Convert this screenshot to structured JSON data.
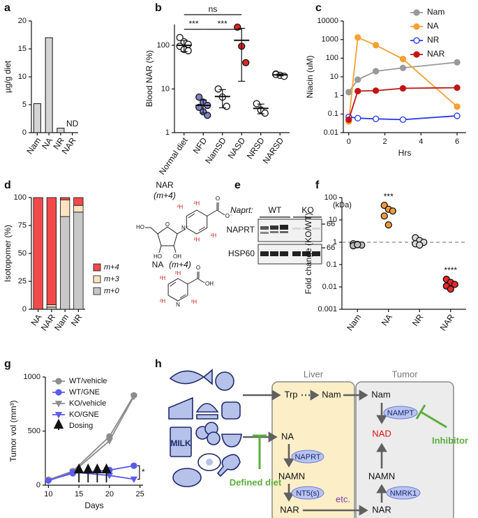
{
  "panel_labels": [
    "a",
    "b",
    "c",
    "d",
    "e",
    "f",
    "g",
    "h"
  ],
  "chart_data": [
    {
      "type": "bar",
      "ylabel": "µg/g diet",
      "categories": [
        "Nam",
        "NA",
        "NR",
        "NAR"
      ],
      "values": [
        5.2,
        17,
        0.8,
        null
      ],
      "value_labels": [
        null,
        null,
        null,
        "ND"
      ],
      "color": "#d4d4d4",
      "ylim": [
        0,
        20
      ],
      "yticks": [
        0,
        5,
        10,
        15,
        20
      ]
    },
    {
      "type": "dot",
      "ylabel": "Blood NAR (%)",
      "log": true,
      "ylim": [
        1,
        300
      ],
      "yticks": [
        1,
        10,
        100
      ],
      "groups": [
        {
          "name": "Normal diet",
          "color": "#ffffff",
          "values": [
            150,
            120,
            105,
            95,
            80,
            75
          ],
          "mean": 100,
          "sd": 28
        },
        {
          "name": "NFD",
          "color": "#7f7fcc",
          "values": [
            6.5,
            5,
            4.2,
            3.8,
            3,
            2.5
          ],
          "mean": 4.2,
          "sd": 1.4
        },
        {
          "name": "NamSD",
          "color": "#ffffff",
          "values": [
            10,
            6.5,
            4
          ],
          "mean": 6.7,
          "sd": 3
        },
        {
          "name": "NASD",
          "color": "#e02424",
          "values": [
            260,
            95,
            40
          ],
          "mean": 130,
          "sd": 115
        },
        {
          "name": "NRSD",
          "color": "#ffffff",
          "values": [
            4.6,
            3.3,
            2.8
          ],
          "mean": 3.6,
          "sd": 0.9
        },
        {
          "name": "NARSD",
          "color": "#ffffff",
          "values": [
            22,
            20.5,
            19.5,
            21.5
          ],
          "mean": 21,
          "sd": 1.1
        }
      ],
      "comparisons": [
        {
          "text": "ns",
          "from": "Normal diet",
          "to": "NASD"
        },
        {
          "text": "***",
          "from": "Normal diet",
          "to": "NFD"
        },
        {
          "text": "***",
          "from": "NFD",
          "to": "NASD"
        }
      ]
    },
    {
      "type": "line",
      "ylabel": "Niacin (uM)",
      "xlabel": "Hrs",
      "log": true,
      "x": [
        0,
        0.5,
        1.5,
        3,
        6
      ],
      "xlim": [
        -0.3,
        6.5
      ],
      "xticks": [
        0,
        2,
        4,
        6
      ],
      "ylim": [
        0.01,
        10000
      ],
      "yticks": [
        0.01,
        0.1,
        1,
        10,
        100,
        1000,
        10000
      ],
      "legend": "upper right",
      "series": [
        {
          "name": "Nam",
          "color": "#999999",
          "values": [
            1.5,
            7,
            20,
            30,
            60
          ]
        },
        {
          "name": "NA",
          "color": "#f7a033",
          "values": [
            0.04,
            1300,
            500,
            90,
            0.25
          ]
        },
        {
          "name": "NR",
          "color": "#2233ee",
          "open": true,
          "values": [
            0.07,
            0.06,
            0.055,
            0.05,
            0.08
          ]
        },
        {
          "name": "NAR",
          "color": "#c01515",
          "values": [
            0.05,
            1.7,
            1.8,
            2.4,
            2.6
          ]
        }
      ]
    },
    {
      "type": "stacked_bar",
      "ylabel": "Isotopomer (%)",
      "categories": [
        "NA",
        "NAR",
        "Nam",
        "NR"
      ],
      "ylim": [
        0,
        100
      ],
      "yticks": [
        0,
        25,
        50,
        75,
        100
      ],
      "series": [
        {
          "name": "m+0",
          "color": "#c8c8c8",
          "values": [
            0,
            2,
            83,
            87
          ]
        },
        {
          "name": "m+3",
          "color": "#fde3c0",
          "values": [
            0,
            2,
            15,
            6
          ]
        },
        {
          "name": "m+4",
          "color": "#f24a4a",
          "values": [
            100,
            96,
            2,
            7
          ]
        }
      ]
    },
    {
      "type": "dot",
      "ylabel": "Fold change (KO/WT)",
      "log": true,
      "ylim": [
        0.001,
        100
      ],
      "yticks": [
        0.001,
        0.01,
        0.1,
        1,
        10,
        100
      ],
      "reference_line": 1,
      "groups": [
        {
          "name": "Nam",
          "color": "#bdbdbd",
          "values": [
            0.85,
            0.8,
            0.75,
            0.7,
            0.78
          ]
        },
        {
          "name": "NA",
          "color": "#f59a3c",
          "values": [
            45,
            30,
            25,
            15,
            6
          ]
        },
        {
          "name": "NR",
          "color": "#d9d9d9",
          "values": [
            1.6,
            1.2,
            1.0,
            0.85,
            0.75
          ]
        },
        {
          "name": "NAR",
          "color": "#e8282a",
          "values": [
            0.022,
            0.016,
            0.013,
            0.011,
            0.008
          ]
        }
      ],
      "annotations": [
        {
          "text": "***",
          "category": "NA"
        },
        {
          "text": "****",
          "category": "NAR"
        }
      ]
    },
    {
      "type": "line",
      "ylabel": "Tumor vol (mm³)",
      "xlabel": "Days",
      "x": [
        10,
        14,
        20,
        24
      ],
      "xlim": [
        9.5,
        25.5
      ],
      "xticks": [
        10,
        15,
        20,
        25
      ],
      "ylim": [
        0,
        1000
      ],
      "yticks": [
        0,
        500,
        1000
      ],
      "legend": "upper left",
      "series": [
        {
          "name": "WT/vehicle",
          "color": "#8c8c8c",
          "marker": "circle",
          "values": [
            50,
            130,
            450,
            830
          ]
        },
        {
          "name": "WT/GNE",
          "color": "#5b5bef",
          "marker": "circle",
          "values": [
            45,
            110,
            140,
            180
          ]
        },
        {
          "name": "KO/vehicle",
          "color": "#8c8c8c",
          "marker": "triangle_down",
          "values": [
            45,
            120,
            410,
            820
          ]
        },
        {
          "name": "KO/GNE",
          "color": "#5b5bef",
          "marker": "triangle_down",
          "values": [
            40,
            120,
            90,
            55
          ]
        }
      ],
      "dosing": {
        "label": "Dosing",
        "days": [
          15,
          16.5,
          18,
          19.5
        ]
      },
      "annotations": [
        {
          "text": "*",
          "between": [
            "WT/GNE",
            "KO/GNE"
          ]
        }
      ]
    }
  ],
  "structures": {
    "nar": {
      "name": "NAR",
      "isotope": "(m+4)",
      "deuterium": "²H",
      "atoms": [
        "N⁺",
        "O",
        "HO",
        "HO",
        "OH",
        "O",
        "O⁻"
      ]
    },
    "na": {
      "name": "NA",
      "isotope": "(m+4)",
      "deuterium": "²H",
      "atoms": [
        "N",
        "O",
        "OH"
      ]
    }
  },
  "blot": {
    "genotype_label": "Naprt:",
    "groups": [
      "WT",
      "KO"
    ],
    "unit": "(kDa)",
    "rows": [
      {
        "name": "NAPRT",
        "marker": 66
      },
      {
        "name": "HSP60",
        "marker": 66
      }
    ]
  },
  "diagram": {
    "compartments": [
      "Liver",
      "Tumor"
    ],
    "liver": [
      "Trp",
      "Nam",
      "NA",
      "NAMN",
      "NAR"
    ],
    "tumor": [
      "Nam",
      "NAD",
      "NAMN",
      "NAR"
    ],
    "enzymes": [
      "NAPRT",
      "NT5(s)",
      "NAMPT",
      "NMRK1"
    ],
    "note": "etc.",
    "blockers": [
      "Defined diet",
      "Inhibitor"
    ],
    "food_text": "MILK"
  }
}
